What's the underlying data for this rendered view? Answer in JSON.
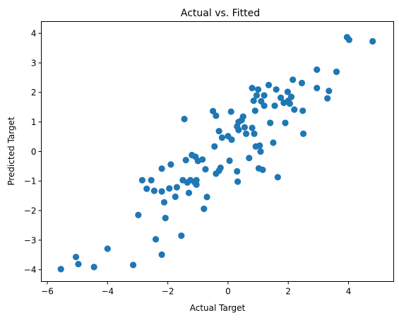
{
  "chart_data": {
    "type": "scatter",
    "title": "Actual vs. Fitted",
    "xlabel": "Actual Target",
    "ylabel": "Predicted Target",
    "xlim": [
      -6.2,
      5.5
    ],
    "ylim": [
      -4.4,
      4.4
    ],
    "xticks": [
      -6,
      -4,
      -2,
      0,
      2,
      4
    ],
    "yticks": [
      -4,
      -3,
      -2,
      -1,
      0,
      1,
      2,
      3,
      4
    ],
    "grid": false,
    "legend": "none",
    "marker_color": "#1f77b4",
    "points": [
      {
        "x": -5.55,
        "y": -3.98
      },
      {
        "x": -5.05,
        "y": -3.57
      },
      {
        "x": -4.97,
        "y": -3.81
      },
      {
        "x": -4.45,
        "y": -3.91
      },
      {
        "x": -4.0,
        "y": -3.29
      },
      {
        "x": -3.15,
        "y": -3.84
      },
      {
        "x": -2.98,
        "y": -2.15
      },
      {
        "x": -2.85,
        "y": -0.97
      },
      {
        "x": -2.7,
        "y": -1.26
      },
      {
        "x": -2.55,
        "y": -0.97
      },
      {
        "x": -2.45,
        "y": -1.33
      },
      {
        "x": -2.4,
        "y": -2.97
      },
      {
        "x": -2.2,
        "y": -1.35
      },
      {
        "x": -2.2,
        "y": -0.58
      },
      {
        "x": -2.2,
        "y": -3.49
      },
      {
        "x": -2.12,
        "y": -1.72
      },
      {
        "x": -2.08,
        "y": -2.25
      },
      {
        "x": -1.95,
        "y": -1.25
      },
      {
        "x": -1.9,
        "y": -0.44
      },
      {
        "x": -1.75,
        "y": -1.53
      },
      {
        "x": -1.7,
        "y": -1.21
      },
      {
        "x": -1.55,
        "y": -2.85
      },
      {
        "x": -1.5,
        "y": -0.97
      },
      {
        "x": -1.45,
        "y": 1.1
      },
      {
        "x": -1.4,
        "y": -0.29
      },
      {
        "x": -1.35,
        "y": -1.05
      },
      {
        "x": -1.3,
        "y": -1.4
      },
      {
        "x": -1.25,
        "y": -0.97
      },
      {
        "x": -1.2,
        "y": -0.12
      },
      {
        "x": -1.1,
        "y": -1.05
      },
      {
        "x": -1.08,
        "y": -0.18
      },
      {
        "x": -1.05,
        "y": -1.12
      },
      {
        "x": -1.05,
        "y": -0.97
      },
      {
        "x": -1.0,
        "y": -0.32
      },
      {
        "x": -0.85,
        "y": -0.27
      },
      {
        "x": -0.8,
        "y": -1.94
      },
      {
        "x": -0.75,
        "y": -0.6
      },
      {
        "x": -0.7,
        "y": -1.54
      },
      {
        "x": -0.5,
        "y": 1.37
      },
      {
        "x": -0.45,
        "y": 0.17
      },
      {
        "x": -0.4,
        "y": 1.21
      },
      {
        "x": -0.4,
        "y": -0.75
      },
      {
        "x": -0.3,
        "y": -0.65
      },
      {
        "x": -0.3,
        "y": 0.69
      },
      {
        "x": -0.25,
        "y": -0.55
      },
      {
        "x": -0.2,
        "y": 0.47
      },
      {
        "x": 0.0,
        "y": 0.52
      },
      {
        "x": 0.05,
        "y": -0.31
      },
      {
        "x": 0.1,
        "y": 1.35
      },
      {
        "x": 0.12,
        "y": 0.4
      },
      {
        "x": 0.3,
        "y": -0.67
      },
      {
        "x": 0.3,
        "y": 0.85
      },
      {
        "x": 0.32,
        "y": -1.02
      },
      {
        "x": 0.35,
        "y": 1.0
      },
      {
        "x": 0.35,
        "y": 0.73
      },
      {
        "x": 0.45,
        "y": 1.06
      },
      {
        "x": 0.5,
        "y": 1.18
      },
      {
        "x": 0.55,
        "y": 0.82
      },
      {
        "x": 0.6,
        "y": 0.6
      },
      {
        "x": 0.7,
        "y": -0.22
      },
      {
        "x": 0.8,
        "y": 0.8
      },
      {
        "x": 0.8,
        "y": 2.15
      },
      {
        "x": 0.85,
        "y": 1.72
      },
      {
        "x": 0.87,
        "y": 0.6
      },
      {
        "x": 0.9,
        "y": 1.38
      },
      {
        "x": 0.92,
        "y": 0.17
      },
      {
        "x": 0.95,
        "y": 1.9
      },
      {
        "x": 1.0,
        "y": 2.1
      },
      {
        "x": 1.02,
        "y": -0.57
      },
      {
        "x": 1.05,
        "y": 0.2
      },
      {
        "x": 1.08,
        "y": 0.0
      },
      {
        "x": 1.1,
        "y": 1.7
      },
      {
        "x": 1.15,
        "y": -0.62
      },
      {
        "x": 1.2,
        "y": 1.55
      },
      {
        "x": 1.2,
        "y": 1.9
      },
      {
        "x": 1.35,
        "y": 2.25
      },
      {
        "x": 1.4,
        "y": 0.97
      },
      {
        "x": 1.5,
        "y": 0.3
      },
      {
        "x": 1.55,
        "y": 1.55
      },
      {
        "x": 1.6,
        "y": 2.1
      },
      {
        "x": 1.65,
        "y": -0.87
      },
      {
        "x": 1.75,
        "y": 1.82
      },
      {
        "x": 1.85,
        "y": 1.65
      },
      {
        "x": 1.9,
        "y": 0.97
      },
      {
        "x": 1.98,
        "y": 2.02
      },
      {
        "x": 2.0,
        "y": 1.72
      },
      {
        "x": 2.05,
        "y": 1.62
      },
      {
        "x": 2.1,
        "y": 1.85
      },
      {
        "x": 2.15,
        "y": 2.43
      },
      {
        "x": 2.2,
        "y": 1.42
      },
      {
        "x": 2.45,
        "y": 2.32
      },
      {
        "x": 2.48,
        "y": 1.38
      },
      {
        "x": 2.5,
        "y": 0.6
      },
      {
        "x": 2.95,
        "y": 2.15
      },
      {
        "x": 2.95,
        "y": 2.77
      },
      {
        "x": 3.3,
        "y": 1.8
      },
      {
        "x": 3.35,
        "y": 2.05
      },
      {
        "x": 3.6,
        "y": 2.7
      },
      {
        "x": 3.95,
        "y": 3.87
      },
      {
        "x": 4.02,
        "y": 3.78
      },
      {
        "x": 4.8,
        "y": 3.73
      }
    ]
  }
}
